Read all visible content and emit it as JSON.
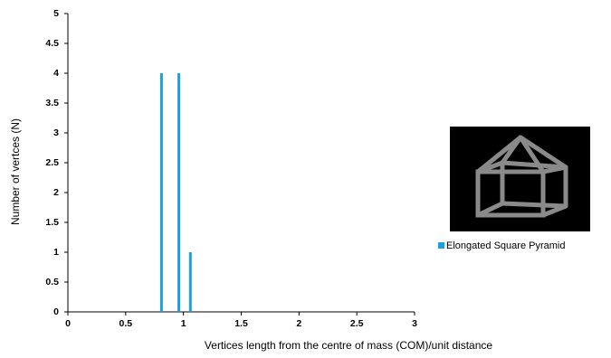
{
  "chart_data": {
    "type": "bar",
    "x_label": "Vertices length from the centre of mass (COM)/unit distance",
    "y_label": "Number of vertces (N)",
    "x": [
      0.81,
      0.96,
      1.06
    ],
    "series": [
      {
        "name": "Elongated Square Pyramid",
        "color": "#1ba1e2",
        "values": [
          4,
          4,
          1
        ]
      }
    ],
    "xlim": [
      0,
      3
    ],
    "xticks": [
      0,
      0.5,
      1,
      1.5,
      2,
      2.5,
      3
    ],
    "ylim": [
      0,
      5
    ],
    "yticks": [
      0,
      0.5,
      1,
      1.5,
      2,
      2.5,
      3,
      3.5,
      4,
      4.5,
      5
    ],
    "grid": false
  }
}
